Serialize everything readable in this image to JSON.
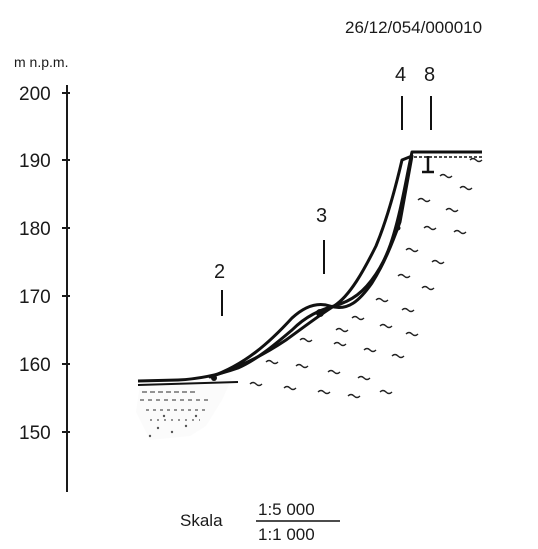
{
  "document_id": "26/12/054/000010",
  "axis": {
    "unit_label": "m n.p.m.",
    "ticks": [
      "200",
      "190",
      "180",
      "170",
      "160",
      "150"
    ]
  },
  "markers": [
    "2",
    "3",
    "4",
    "8"
  ],
  "scale": {
    "label": "Skala",
    "horizontal": "1:5 000",
    "vertical": "1:1 000"
  }
}
